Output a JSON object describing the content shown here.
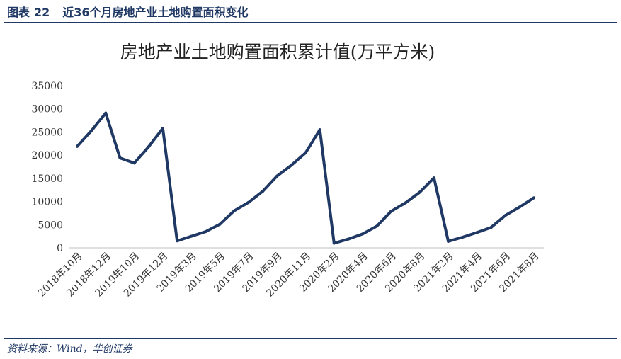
{
  "header": {
    "label": "图表",
    "number": "22",
    "title": "近36个月房地产业土地购置面积变化"
  },
  "source": {
    "prefix": "资料来源：",
    "name": "Wind，华创证券"
  },
  "colors": {
    "header": "#1f3864",
    "line": "#1f3864",
    "axis_text": "#333333"
  },
  "chart_data": {
    "type": "line",
    "title": "房地产业土地购置面积累计值(万平方米)",
    "ylim": [
      0,
      35000
    ],
    "yticks": [
      0,
      5000,
      10000,
      15000,
      20000,
      25000,
      30000,
      35000
    ],
    "grid": false,
    "legend": "none",
    "xtick_labels": [
      "2018年10月",
      "2018年12月",
      "2019年10月",
      "2019年12月",
      "2019年3月",
      "2019年5月",
      "2019年7月",
      "2019年9月",
      "2020年11月",
      "2020年2月",
      "2020年4月",
      "2020年6月",
      "2020年8月",
      "2021年2月",
      "2021年4月",
      "2021年6月",
      "2021年8月"
    ],
    "series": [
      {
        "values": [
          21900,
          25300,
          29100,
          19400,
          18300,
          21800,
          25800,
          1500,
          2500,
          3500,
          5100,
          8000,
          9800,
          12200,
          15500,
          17800,
          20500,
          25500,
          1000,
          1900,
          3000,
          4700,
          7900,
          9700,
          12000,
          15100,
          1400,
          2300,
          3300,
          4400,
          7000,
          8800,
          10800
        ]
      }
    ]
  }
}
